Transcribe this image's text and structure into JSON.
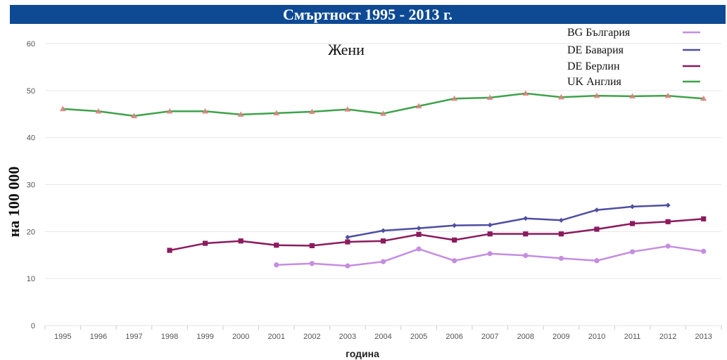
{
  "header": {
    "title": "Смъртност 1995 - 2013 г."
  },
  "chart_data": {
    "type": "line",
    "title": "Смъртност 1995 - 2013 г.",
    "subtitle": "Жени",
    "xlabel": "година",
    "ylabel": "на 100 000",
    "ylim": [
      0,
      60
    ],
    "yticks": [
      0,
      10,
      20,
      30,
      40,
      50,
      60
    ],
    "categories": [
      "1995",
      "1996",
      "1997",
      "1998",
      "1999",
      "2000",
      "2001",
      "2002",
      "2003",
      "2004",
      "2005",
      "2006",
      "2007",
      "2008",
      "2009",
      "2010",
      "2011",
      "2012",
      "2013"
    ],
    "grid": true,
    "legend": "top-right",
    "series": [
      {
        "name": "BG България",
        "color": "#c58de0",
        "marker": "circle",
        "values": [
          null,
          null,
          null,
          null,
          null,
          null,
          12.9,
          13.2,
          12.7,
          13.6,
          16.3,
          13.8,
          15.3,
          14.9,
          14.3,
          13.8,
          15.7,
          16.9,
          15.8
        ]
      },
      {
        "name": "DE Бавария",
        "color": "#4e4ea2",
        "marker": "diamond",
        "values": [
          null,
          null,
          null,
          null,
          null,
          null,
          null,
          null,
          18.8,
          20.2,
          20.7,
          21.3,
          21.4,
          22.8,
          22.4,
          24.6,
          25.3,
          25.6,
          null
        ]
      },
      {
        "name": "DE Берлин",
        "color": "#8b1b5e",
        "marker": "square",
        "values": [
          null,
          null,
          null,
          16.0,
          17.5,
          18.0,
          17.1,
          17.0,
          17.8,
          18.0,
          19.4,
          18.2,
          19.5,
          19.5,
          19.5,
          20.5,
          21.7,
          22.1,
          22.7
        ]
      },
      {
        "name": "UK Англия",
        "color": "#3ea24a",
        "marker": "triangle",
        "values": [
          46.1,
          45.6,
          44.6,
          45.6,
          45.6,
          44.9,
          45.2,
          45.5,
          46.0,
          45.1,
          46.7,
          48.3,
          48.5,
          49.4,
          48.6,
          48.9,
          48.8,
          48.9,
          48.3
        ]
      }
    ]
  }
}
